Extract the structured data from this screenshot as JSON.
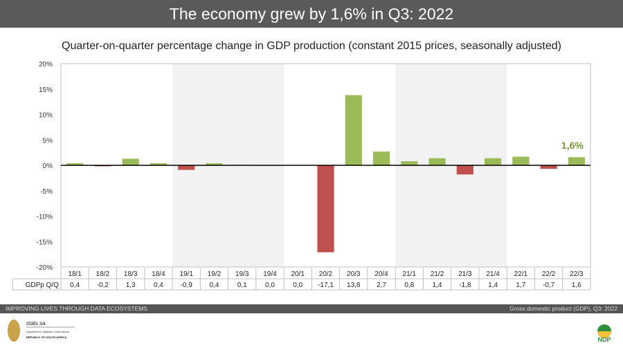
{
  "header": {
    "title": "The economy grew by 1,6% in Q3: 2022"
  },
  "chart_data": {
    "type": "bar",
    "title": "Quarter-on-quarter percentage change in GDP production (constant 2015 prices, seasonally adjusted)",
    "categories": [
      "18/1",
      "18/2",
      "18/3",
      "18/4",
      "19/1",
      "19/2",
      "19/3",
      "19/4",
      "20/1",
      "20/2",
      "20/3",
      "20/4",
      "21/1",
      "21/2",
      "21/3",
      "21/4",
      "22/1",
      "22/2",
      "22/3"
    ],
    "series": [
      {
        "name": "GDPp Q/Q",
        "values": [
          0.4,
          -0.2,
          1.3,
          0.4,
          -0.9,
          0.4,
          0.1,
          0.0,
          0.0,
          -17.1,
          13.8,
          2.7,
          0.8,
          1.4,
          -1.8,
          1.4,
          1.7,
          -0.7,
          1.6
        ]
      }
    ],
    "value_labels": [
      "0,4",
      "-0,2",
      "1,3",
      "0,4",
      "-0,9",
      "0,4",
      "0,1",
      "0,0",
      "0,0",
      "-17,1",
      "13,8",
      "2,7",
      "0,8",
      "1,4",
      "-1,8",
      "1,4",
      "1,7",
      "-0,7",
      "1,6"
    ],
    "yticks": [
      "20%",
      "15%",
      "10%",
      "5%",
      "0%",
      "-5%",
      "-10%",
      "-15%",
      "-20%"
    ],
    "ylim": [
      -20,
      20
    ],
    "annotation": "1,6%",
    "colors": {
      "positive": "#9bbb59",
      "negative": "#c0504d",
      "annotation": "#77933c",
      "band": "#f2f2f2"
    }
  },
  "footer": {
    "tagline": "IMPROVING LIVES THROUGH DATA ECOSYSTEMS",
    "source": "Gross domestic product (GDP), Q3: 2022"
  },
  "logo": {
    "name": "stats sa",
    "dept": "Department: Statistics South Africa",
    "country": "REPUBLIC OF SOUTH AFRICA",
    "ndp": "NDP"
  }
}
